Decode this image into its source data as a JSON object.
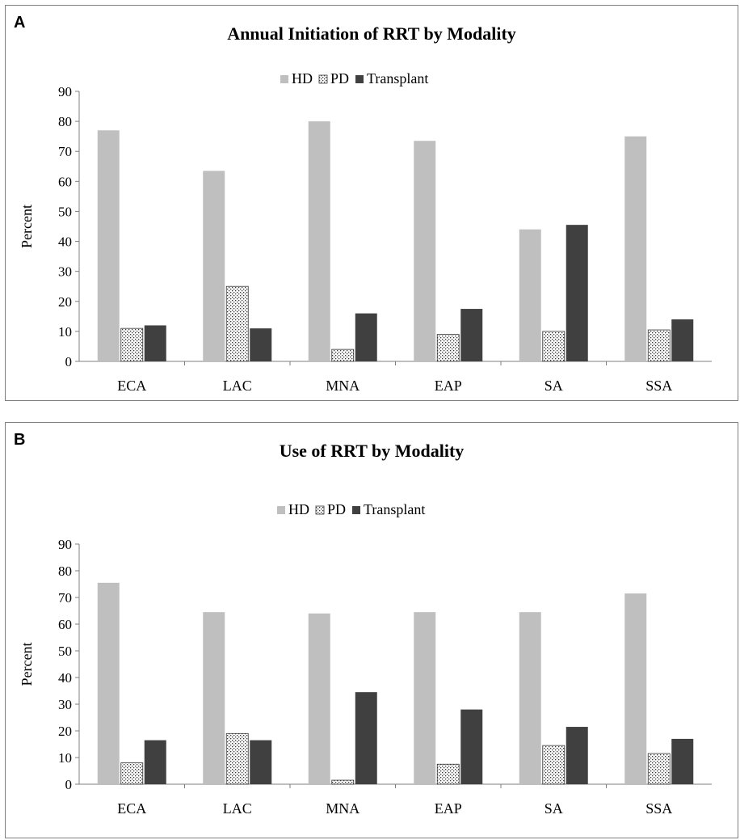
{
  "colors": {
    "HD": "#bfbfbf",
    "PD": "#ffffff",
    "Transplant": "#404040"
  },
  "chart_data": [
    {
      "type": "bar",
      "panel": "A",
      "title": "Annual Initiation of RRT by Modality",
      "ylabel": "Percent",
      "xlabel": "",
      "ylim": [
        0,
        90
      ],
      "yticks": [
        "0",
        "10",
        "20",
        "30",
        "40",
        "50",
        "60",
        "70",
        "80",
        "90"
      ],
      "categories": [
        "ECA",
        "LAC",
        "MNA",
        "EAP",
        "SA",
        "SSA"
      ],
      "legend_position": "top",
      "grid": false,
      "series": [
        {
          "name": "HD",
          "values": [
            77,
            63.5,
            80,
            73.5,
            44,
            75
          ]
        },
        {
          "name": "PD",
          "values": [
            11,
            25,
            4,
            9,
            10,
            10.5
          ]
        },
        {
          "name": "Transplant",
          "values": [
            12,
            11,
            16,
            17.5,
            45.5,
            14
          ]
        }
      ]
    },
    {
      "type": "bar",
      "panel": "B",
      "title": "Use of RRT by Modality",
      "ylabel": "Percent",
      "xlabel": "",
      "ylim": [
        0,
        90
      ],
      "yticks": [
        "0",
        "10",
        "20",
        "30",
        "40",
        "50",
        "60",
        "70",
        "80",
        "90"
      ],
      "categories": [
        "ECA",
        "LAC",
        "MNA",
        "EAP",
        "SA",
        "SSA"
      ],
      "legend_position": "top",
      "grid": false,
      "series": [
        {
          "name": "HD",
          "values": [
            75.5,
            64.5,
            64,
            64.5,
            64.5,
            71.5
          ]
        },
        {
          "name": "PD",
          "values": [
            8,
            19,
            1.5,
            7.5,
            14.5,
            11.5
          ]
        },
        {
          "name": "Transplant",
          "values": [
            16.5,
            16.5,
            34.5,
            28,
            21.5,
            17
          ]
        }
      ]
    }
  ]
}
